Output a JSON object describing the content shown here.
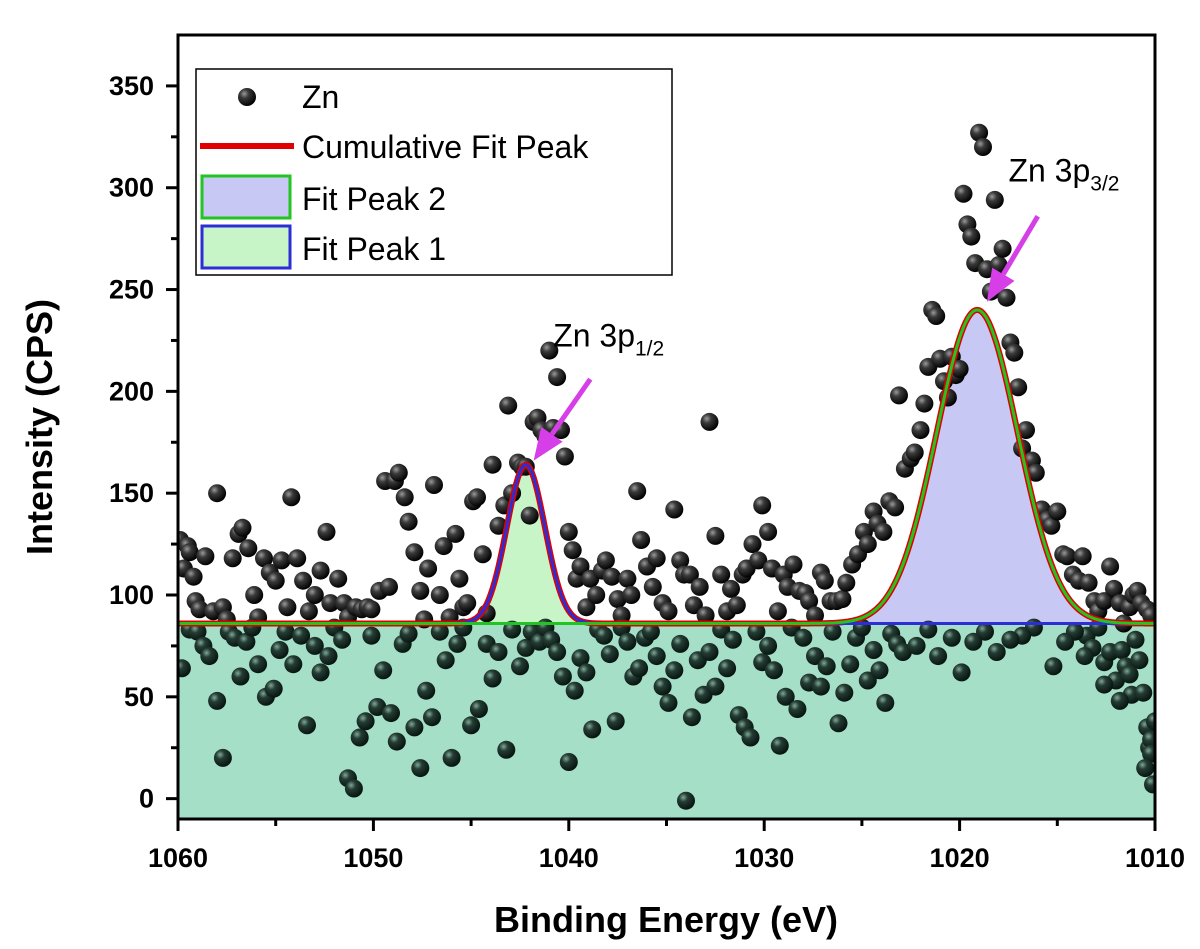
{
  "chart_data": {
    "type": "scatter",
    "xlabel": "Binding Energy (eV)",
    "ylabel": "Intensity (CPS)",
    "xlim": [
      1060,
      1010
    ],
    "ylim": [
      -10,
      375
    ],
    "x_reversed": true,
    "x_ticks": [
      1060,
      1050,
      1040,
      1030,
      1020,
      1010
    ],
    "y_ticks": [
      0,
      50,
      100,
      150,
      200,
      250,
      300,
      350
    ],
    "grid": false,
    "legend_position": "top-left",
    "legend": [
      "Zn",
      "Cumulative Fit Peak",
      "Fit Peak 2",
      "Fit Peak 1"
    ],
    "baseline": 86,
    "peaks": [
      {
        "name": "Fit Peak 1",
        "center": 1042.2,
        "amplitude": 78,
        "fwhm": 2.3,
        "fill": "#c8f5c8",
        "edge": "#2d2dd6"
      },
      {
        "name": "Fit Peak 2",
        "center": 1019.1,
        "amplitude": 154,
        "fwhm": 4.9,
        "fill": "#c8c8f5",
        "edge": "#22c422"
      }
    ],
    "cumulative_color": "#e00000",
    "baseline_fill": "#a6dfc8",
    "annotations": [
      {
        "main": "Zn 3p",
        "sub": "1/2",
        "x": 1040.8,
        "y": 222,
        "arrow_from": [
          1038.9,
          206
        ],
        "arrow_to": [
          1041.8,
          166
        ]
      },
      {
        "main": "Zn 3p",
        "sub": "3/2",
        "x": 1017.5,
        "y": 303,
        "arrow_from": [
          1016.0,
          286
        ],
        "arrow_to": [
          1018.6,
          244
        ]
      }
    ],
    "points": [
      [
        1059.9,
        127
      ],
      [
        1059.7,
        113
      ],
      [
        1059.5,
        124
      ],
      [
        1059.4,
        121
      ],
      [
        1059.2,
        109
      ],
      [
        1059.1,
        97
      ],
      [
        1058.9,
        93
      ],
      [
        1058.6,
        119
      ],
      [
        1058.2,
        92
      ],
      [
        1058.0,
        150
      ],
      [
        1057.7,
        94
      ],
      [
        1057.5,
        88
      ],
      [
        1057.2,
        118
      ],
      [
        1056.9,
        130
      ],
      [
        1056.7,
        133
      ],
      [
        1056.4,
        123
      ],
      [
        1056.1,
        100
      ],
      [
        1055.9,
        89
      ],
      [
        1055.6,
        118
      ],
      [
        1055.3,
        111
      ],
      [
        1055.0,
        107
      ],
      [
        1054.7,
        117
      ],
      [
        1054.4,
        94
      ],
      [
        1054.2,
        148
      ],
      [
        1053.9,
        118
      ],
      [
        1053.6,
        107
      ],
      [
        1053.3,
        92
      ],
      [
        1053.0,
        100
      ],
      [
        1052.7,
        112
      ],
      [
        1052.4,
        131
      ],
      [
        1052.2,
        96
      ],
      [
        1051.8,
        108
      ],
      [
        1051.5,
        96
      ],
      [
        1051.3,
        89
      ],
      [
        1050.9,
        94
      ],
      [
        1050.6,
        93
      ],
      [
        1050.3,
        94
      ],
      [
        1050.1,
        93
      ],
      [
        1049.7,
        102
      ],
      [
        1049.4,
        156
      ],
      [
        1049.2,
        104
      ],
      [
        1048.9,
        156
      ],
      [
        1048.7,
        160
      ],
      [
        1048.4,
        148
      ],
      [
        1048.2,
        136
      ],
      [
        1047.9,
        121
      ],
      [
        1047.6,
        102
      ],
      [
        1047.4,
        88
      ],
      [
        1047.2,
        113
      ],
      [
        1046.9,
        154
      ],
      [
        1046.6,
        100
      ],
      [
        1046.4,
        124
      ],
      [
        1046.1,
        89
      ],
      [
        1045.8,
        130
      ],
      [
        1045.6,
        108
      ],
      [
        1045.4,
        94
      ],
      [
        1045.2,
        96
      ],
      [
        1044.9,
        146
      ],
      [
        1044.7,
        148
      ],
      [
        1044.4,
        120
      ],
      [
        1044.2,
        91
      ],
      [
        1043.9,
        164
      ],
      [
        1043.6,
        134
      ],
      [
        1043.3,
        144
      ],
      [
        1043.1,
        193
      ],
      [
        1042.9,
        150
      ],
      [
        1042.6,
        165
      ],
      [
        1042.4,
        163
      ],
      [
        1042.2,
        163
      ],
      [
        1042.0,
        139
      ],
      [
        1041.8,
        185
      ],
      [
        1041.6,
        187
      ],
      [
        1041.4,
        181
      ],
      [
        1041.2,
        178
      ],
      [
        1041.0,
        220
      ],
      [
        1040.8,
        182
      ],
      [
        1040.6,
        207
      ],
      [
        1040.4,
        181
      ],
      [
        1040.2,
        168
      ],
      [
        1040.0,
        131
      ],
      [
        1039.8,
        122
      ],
      [
        1039.6,
        108
      ],
      [
        1039.4,
        114
      ],
      [
        1039.1,
        94
      ],
      [
        1038.9,
        108
      ],
      [
        1038.6,
        100
      ],
      [
        1038.3,
        112
      ],
      [
        1038.1,
        117
      ],
      [
        1037.8,
        109
      ],
      [
        1037.5,
        98
      ],
      [
        1037.3,
        90
      ],
      [
        1037.0,
        108
      ],
      [
        1036.8,
        100
      ],
      [
        1036.5,
        151
      ],
      [
        1036.3,
        127
      ],
      [
        1036.0,
        114
      ],
      [
        1035.7,
        104
      ],
      [
        1035.5,
        118
      ],
      [
        1035.2,
        96
      ],
      [
        1034.9,
        92
      ],
      [
        1034.6,
        142
      ],
      [
        1034.3,
        117
      ],
      [
        1034.1,
        110
      ],
      [
        1033.8,
        110
      ],
      [
        1033.6,
        95
      ],
      [
        1033.3,
        104
      ],
      [
        1033.0,
        90
      ],
      [
        1032.8,
        185
      ],
      [
        1032.5,
        129
      ],
      [
        1032.2,
        110
      ],
      [
        1031.9,
        92
      ],
      [
        1031.7,
        103
      ],
      [
        1031.4,
        95
      ],
      [
        1031.1,
        110
      ],
      [
        1030.9,
        113
      ],
      [
        1030.6,
        125
      ],
      [
        1030.3,
        117
      ],
      [
        1030.1,
        144
      ],
      [
        1029.8,
        131
      ],
      [
        1029.6,
        113
      ],
      [
        1029.3,
        92
      ],
      [
        1029.0,
        110
      ],
      [
        1028.8,
        104
      ],
      [
        1028.5,
        115
      ],
      [
        1028.2,
        102
      ],
      [
        1027.9,
        101
      ],
      [
        1027.7,
        97
      ],
      [
        1027.4,
        90
      ],
      [
        1027.1,
        111
      ],
      [
        1026.9,
        107
      ],
      [
        1026.6,
        97
      ],
      [
        1026.3,
        97
      ],
      [
        1026.0,
        98
      ],
      [
        1025.8,
        106
      ],
      [
        1025.5,
        115
      ],
      [
        1025.2,
        120
      ],
      [
        1024.9,
        131
      ],
      [
        1024.7,
        125
      ],
      [
        1024.4,
        141
      ],
      [
        1024.2,
        135
      ],
      [
        1023.9,
        131
      ],
      [
        1023.6,
        146
      ],
      [
        1023.3,
        143
      ],
      [
        1023.1,
        198
      ],
      [
        1022.8,
        162
      ],
      [
        1022.5,
        167
      ],
      [
        1022.3,
        170
      ],
      [
        1022.0,
        181
      ],
      [
        1021.8,
        194
      ],
      [
        1021.6,
        212
      ],
      [
        1021.4,
        240
      ],
      [
        1021.2,
        237
      ],
      [
        1021.0,
        216
      ],
      [
        1020.8,
        205
      ],
      [
        1020.6,
        197
      ],
      [
        1020.4,
        217
      ],
      [
        1020.2,
        208
      ],
      [
        1020.0,
        211
      ],
      [
        1019.8,
        297
      ],
      [
        1019.6,
        282
      ],
      [
        1019.4,
        276
      ],
      [
        1019.2,
        263
      ],
      [
        1019.0,
        327
      ],
      [
        1018.8,
        320
      ],
      [
        1018.6,
        260
      ],
      [
        1018.4,
        249
      ],
      [
        1018.2,
        294
      ],
      [
        1018.0,
        262
      ],
      [
        1017.8,
        270
      ],
      [
        1017.6,
        246
      ],
      [
        1017.4,
        224
      ],
      [
        1017.2,
        219
      ],
      [
        1017.0,
        202
      ],
      [
        1016.8,
        172
      ],
      [
        1016.6,
        181
      ],
      [
        1016.3,
        166
      ],
      [
        1016.1,
        160
      ],
      [
        1015.8,
        142
      ],
      [
        1015.5,
        137
      ],
      [
        1015.3,
        134
      ],
      [
        1015.0,
        141
      ],
      [
        1014.7,
        120
      ],
      [
        1014.5,
        119
      ],
      [
        1014.2,
        110
      ],
      [
        1013.9,
        107
      ],
      [
        1013.7,
        119
      ],
      [
        1013.4,
        106
      ],
      [
        1013.1,
        97
      ],
      [
        1012.9,
        92
      ],
      [
        1012.6,
        97
      ],
      [
        1012.3,
        114
      ],
      [
        1012.1,
        103
      ],
      [
        1011.8,
        96
      ],
      [
        1011.6,
        86
      ],
      [
        1011.3,
        94
      ],
      [
        1011.1,
        100
      ],
      [
        1010.9,
        102
      ],
      [
        1010.7,
        96
      ],
      [
        1010.4,
        93
      ],
      [
        1010.2,
        90
      ],
      [
        1059.8,
        64
      ],
      [
        1059.4,
        83
      ],
      [
        1059.0,
        82
      ],
      [
        1058.7,
        75
      ],
      [
        1058.4,
        70
      ],
      [
        1058.0,
        48
      ],
      [
        1057.7,
        20
      ],
      [
        1057.4,
        82
      ],
      [
        1057.1,
        79
      ],
      [
        1056.8,
        60
      ],
      [
        1056.5,
        77
      ],
      [
        1056.2,
        84
      ],
      [
        1055.9,
        66
      ],
      [
        1055.5,
        50
      ],
      [
        1055.1,
        54
      ],
      [
        1054.8,
        73
      ],
      [
        1054.5,
        82
      ],
      [
        1054.1,
        66
      ],
      [
        1053.7,
        80
      ],
      [
        1053.4,
        36
      ],
      [
        1053.0,
        75
      ],
      [
        1052.7,
        62
      ],
      [
        1052.3,
        70
      ],
      [
        1052.0,
        84
      ],
      [
        1051.6,
        78
      ],
      [
        1051.3,
        10
      ],
      [
        1051.0,
        5
      ],
      [
        1050.7,
        30
      ],
      [
        1050.4,
        38
      ],
      [
        1050.1,
        80
      ],
      [
        1049.8,
        45
      ],
      [
        1049.5,
        63
      ],
      [
        1049.1,
        42
      ],
      [
        1048.8,
        28
      ],
      [
        1048.5,
        76
      ],
      [
        1048.2,
        81
      ],
      [
        1047.9,
        35
      ],
      [
        1047.6,
        15
      ],
      [
        1047.3,
        53
      ],
      [
        1047.0,
        40
      ],
      [
        1046.6,
        82
      ],
      [
        1046.3,
        68
      ],
      [
        1046.0,
        20
      ],
      [
        1045.7,
        76
      ],
      [
        1045.4,
        84
      ],
      [
        1045.0,
        36
      ],
      [
        1044.6,
        44
      ],
      [
        1044.2,
        76
      ],
      [
        1043.9,
        59
      ],
      [
        1043.6,
        72
      ],
      [
        1043.2,
        24
      ],
      [
        1042.9,
        83
      ],
      [
        1042.5,
        65
      ],
      [
        1042.2,
        74
      ],
      [
        1041.9,
        82
      ],
      [
        1041.5,
        77
      ],
      [
        1041.2,
        84
      ],
      [
        1040.9,
        78
      ],
      [
        1040.6,
        72
      ],
      [
        1040.3,
        60
      ],
      [
        1040.0,
        18
      ],
      [
        1039.7,
        53
      ],
      [
        1039.4,
        69
      ],
      [
        1039.1,
        62
      ],
      [
        1038.8,
        34
      ],
      [
        1038.5,
        83
      ],
      [
        1038.2,
        80
      ],
      [
        1037.9,
        71
      ],
      [
        1037.6,
        38
      ],
      [
        1037.3,
        84
      ],
      [
        1037.0,
        77
      ],
      [
        1036.7,
        60
      ],
      [
        1036.4,
        64
      ],
      [
        1036.1,
        79
      ],
      [
        1035.8,
        82
      ],
      [
        1035.5,
        70
      ],
      [
        1035.2,
        55
      ],
      [
        1034.9,
        47
      ],
      [
        1034.6,
        63
      ],
      [
        1034.3,
        76
      ],
      [
        1034.0,
        -1
      ],
      [
        1033.7,
        40
      ],
      [
        1033.4,
        68
      ],
      [
        1033.1,
        51
      ],
      [
        1032.8,
        72
      ],
      [
        1032.5,
        55
      ],
      [
        1032.2,
        83
      ],
      [
        1031.9,
        64
      ],
      [
        1031.6,
        78
      ],
      [
        1031.3,
        41
      ],
      [
        1031.0,
        35
      ],
      [
        1030.7,
        30
      ],
      [
        1030.4,
        82
      ],
      [
        1030.1,
        67
      ],
      [
        1029.8,
        75
      ],
      [
        1029.5,
        63
      ],
      [
        1029.2,
        26
      ],
      [
        1028.9,
        50
      ],
      [
        1028.6,
        84
      ],
      [
        1028.3,
        44
      ],
      [
        1028.0,
        79
      ],
      [
        1027.7,
        57
      ],
      [
        1027.4,
        70
      ],
      [
        1027.1,
        55
      ],
      [
        1026.8,
        65
      ],
      [
        1026.5,
        82
      ],
      [
        1026.2,
        37
      ],
      [
        1025.9,
        52
      ],
      [
        1025.6,
        66
      ],
      [
        1025.3,
        79
      ],
      [
        1025.0,
        84
      ],
      [
        1024.7,
        58
      ],
      [
        1024.4,
        73
      ],
      [
        1024.1,
        63
      ],
      [
        1023.8,
        47
      ],
      [
        1023.5,
        81
      ],
      [
        1023.2,
        76
      ],
      [
        1022.9,
        72
      ],
      [
        1013.5,
        80
      ],
      [
        1013.2,
        74
      ],
      [
        1012.9,
        84
      ],
      [
        1012.6,
        67
      ],
      [
        1012.3,
        72
      ],
      [
        1012.0,
        58
      ],
      [
        1011.7,
        73
      ],
      [
        1011.5,
        65
      ],
      [
        1011.2,
        51
      ],
      [
        1011.0,
        78
      ],
      [
        1010.8,
        68
      ],
      [
        1010.6,
        52
      ],
      [
        1010.4,
        35
      ],
      [
        1010.3,
        25
      ],
      [
        1010.2,
        29
      ],
      [
        1010.1,
        7
      ],
      [
        1010.0,
        38
      ],
      [
        1010.2,
        22
      ],
      [
        1010.5,
        15
      ],
      [
        1011.3,
        61
      ],
      [
        1011.8,
        48
      ],
      [
        1012.6,
        56
      ],
      [
        1013.6,
        70
      ],
      [
        1014.1,
        82
      ],
      [
        1014.6,
        77
      ],
      [
        1015.2,
        65
      ],
      [
        1016.2,
        84
      ],
      [
        1016.8,
        80
      ],
      [
        1017.4,
        78
      ],
      [
        1018.1,
        72
      ],
      [
        1018.7,
        82
      ],
      [
        1019.3,
        77
      ],
      [
        1019.9,
        62
      ],
      [
        1020.4,
        79
      ],
      [
        1021.1,
        70
      ],
      [
        1021.6,
        83
      ],
      [
        1022.2,
        75
      ]
    ]
  }
}
